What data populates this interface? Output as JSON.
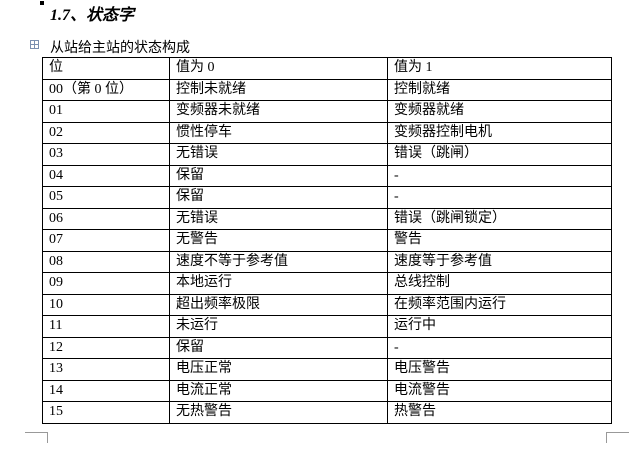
{
  "heading": "1.7、状态字",
  "caption": "从站给主站的状态构成",
  "table": {
    "header": [
      "位",
      "值为 0",
      "值为 1"
    ],
    "rows": [
      [
        "00（第 0 位）",
        "控制未就绪",
        "控制就绪"
      ],
      [
        "01",
        "变频器未就绪",
        "变频器就绪"
      ],
      [
        "02",
        "惯性停车",
        "变频器控制电机"
      ],
      [
        "03",
        "无错误",
        "错误（跳闸）"
      ],
      [
        "04",
        "保留",
        "-"
      ],
      [
        "05",
        "保留",
        "-"
      ],
      [
        "06",
        "无错误",
        "错误（跳闸锁定）"
      ],
      [
        "07",
        "无警告",
        "警告"
      ],
      [
        "08",
        "速度不等于参考值",
        "速度等于参考值"
      ],
      [
        "09",
        "本地运行",
        "总线控制"
      ],
      [
        "10",
        "超出频率极限",
        "在频率范围内运行"
      ],
      [
        "11",
        "未运行",
        "运行中"
      ],
      [
        "12",
        "保留",
        "-"
      ],
      [
        "13",
        "电压正常",
        "电压警告"
      ],
      [
        "14",
        "电流正常",
        "电流警告"
      ],
      [
        "15",
        "无热警告",
        "热警告"
      ]
    ]
  }
}
